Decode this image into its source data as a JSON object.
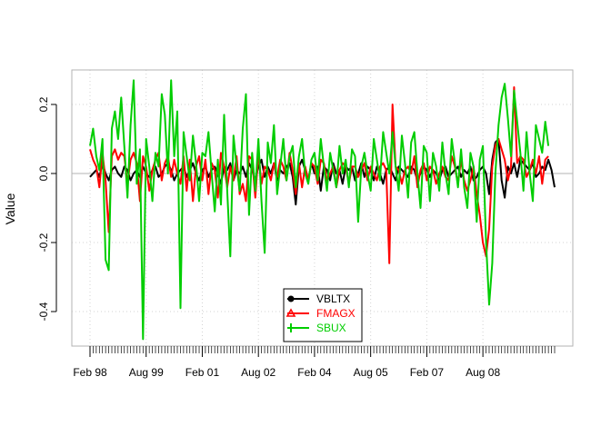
{
  "chart_data": {
    "type": "line",
    "ylabel": "Value",
    "xlabel": "",
    "ylim": [
      -0.5,
      0.3
    ],
    "y_ticks": [
      -0.4,
      -0.2,
      0.0,
      0.2
    ],
    "y_tick_labels": [
      "-0.4",
      "-0.2",
      "0.0",
      "0.2"
    ],
    "x_tick_labels": [
      "Feb 98",
      "Aug 99",
      "Feb 01",
      "Aug 02",
      "Feb 04",
      "Aug 05",
      "Feb 07",
      "Aug 08"
    ],
    "grid": true,
    "legend_position": "bottom-center",
    "series": [
      {
        "name": "VBLTX",
        "color": "#000000",
        "marker": "circle",
        "values": [
          -0.01,
          0.0,
          0.01,
          -0.01,
          0.03,
          0.0,
          -0.02,
          0.01,
          0.02,
          0.0,
          -0.01,
          0.02,
          0.01,
          -0.02,
          0.0,
          0.01,
          -0.01,
          0.02,
          0.0,
          -0.01,
          0.01,
          0.02,
          -0.01,
          0.0,
          0.02,
          0.03,
          0.01,
          -0.02,
          0.0,
          0.01,
          0.02,
          -0.01,
          0.01,
          0.03,
          0.0,
          -0.02,
          0.01,
          0.02,
          -0.01,
          0.01,
          0.02,
          0.0,
          -0.03,
          0.02,
          0.01,
          0.03,
          -0.02,
          0.01,
          0.0,
          0.02,
          -0.01,
          0.03,
          0.01,
          -0.02,
          0.02,
          0.04,
          -0.01,
          0.02,
          0.0,
          0.03,
          -0.02,
          0.01,
          0.0,
          0.02,
          0.03,
          -0.01,
          -0.09,
          0.02,
          0.04,
          0.01,
          -0.02,
          0.03,
          0.0,
          0.02,
          -0.05,
          0.02,
          0.01,
          -0.02,
          0.03,
          0.0,
          0.01,
          -0.03,
          0.02,
          0.01,
          0.02,
          -0.02,
          0.0,
          0.03,
          -0.01,
          0.02,
          0.01,
          -0.02,
          0.02,
          0.0,
          -0.03,
          0.01,
          0.02,
          0.0,
          -0.02,
          0.02,
          0.01,
          0.0,
          -0.01,
          0.02,
          0.01,
          -0.02,
          0.0,
          0.02,
          0.01,
          -0.01,
          0.01,
          0.0,
          -0.02,
          0.01,
          0.02,
          -0.01,
          0.0,
          0.01,
          0.02,
          -0.01,
          0.01,
          0.0,
          0.02,
          -0.02,
          -0.01,
          0.01,
          0.02,
          0.0,
          -0.06,
          0.04,
          0.09,
          0.1,
          -0.02,
          -0.07,
          0.02,
          0.0,
          0.03,
          -0.01,
          0.04,
          0.03,
          0.02,
          0.01,
          0.03,
          -0.01,
          0.0,
          0.02,
          0.01,
          0.04,
          0.01,
          -0.04
        ]
      },
      {
        "name": "FMAGX",
        "color": "#ff0000",
        "marker": "triangle",
        "values": [
          0.07,
          0.04,
          0.02,
          -0.04,
          0.06,
          -0.02,
          -0.17,
          0.05,
          0.07,
          0.04,
          0.06,
          0.05,
          -0.03,
          0.04,
          0.06,
          0.03,
          -0.08,
          0.05,
          0.02,
          -0.05,
          0.01,
          0.04,
          0.06,
          -0.02,
          0.03,
          0.05,
          -0.01,
          0.04,
          0.0,
          -0.03,
          0.05,
          -0.05,
          0.04,
          -0.08,
          0.02,
          0.05,
          -0.02,
          0.04,
          -0.06,
          0.03,
          0.01,
          -0.07,
          0.06,
          0.02,
          -0.04,
          0.02,
          -0.02,
          0.05,
          -0.06,
          -0.03,
          -0.08,
          0.05,
          0.04,
          -0.07,
          0.06,
          -0.03,
          0.02,
          0.01,
          -0.02,
          0.03,
          -0.01,
          0.04,
          0.02,
          -0.02,
          0.06,
          0.01,
          -0.06,
          0.03,
          -0.04,
          0.02,
          -0.02,
          0.03,
          0.02,
          -0.03,
          0.04,
          0.03,
          -0.02,
          0.0,
          0.02,
          -0.04,
          0.01,
          0.03,
          0.02,
          -0.03,
          0.02,
          0.02,
          -0.01,
          0.01,
          0.03,
          -0.02,
          0.02,
          0.0,
          -0.02,
          0.02,
          0.03,
          0.01,
          -0.26,
          0.2,
          0.02,
          0.01,
          -0.03,
          0.01,
          0.02,
          0.0,
          0.05,
          -0.04,
          0.01,
          0.03,
          -0.02,
          0.02,
          0.01,
          -0.03,
          0.0,
          0.02,
          -0.01,
          -0.02,
          0.05,
          0.02,
          -0.03,
          0.04,
          -0.02,
          -0.05,
          -0.02,
          0.02,
          -0.06,
          -0.12,
          -0.2,
          -0.24,
          -0.16,
          0.02,
          0.08,
          0.1,
          0.07,
          0.04,
          -0.02,
          0.02,
          0.25,
          0.03,
          0.05,
          0.04,
          -0.01,
          0.01,
          0.04,
          0.0,
          0.05,
          -0.03,
          0.04,
          0.05
        ]
      },
      {
        "name": "SBUX",
        "color": "#00cd00",
        "marker": "plus",
        "values": [
          0.08,
          0.13,
          0.05,
          0.01,
          0.1,
          -0.25,
          -0.28,
          0.13,
          0.18,
          0.1,
          0.22,
          0.08,
          -0.07,
          0.14,
          0.27,
          -0.03,
          0.07,
          -0.48,
          0.1,
          0.02,
          -0.08,
          0.06,
          0.02,
          0.23,
          0.17,
          0.0,
          0.27,
          0.05,
          0.18,
          -0.39,
          0.12,
          0.05,
          -0.02,
          0.11,
          0.03,
          -0.08,
          0.06,
          0.05,
          0.12,
          0.0,
          -0.11,
          0.04,
          -0.09,
          0.17,
          -0.05,
          -0.24,
          0.11,
          0.02,
          -0.05,
          0.13,
          0.23,
          -0.12,
          0.06,
          -0.05,
          0.1,
          -0.08,
          -0.23,
          0.09,
          0.03,
          0.14,
          -0.06,
          0.02,
          0.1,
          -0.02,
          0.05,
          0.08,
          -0.04,
          0.05,
          0.1,
          0.0,
          -0.03,
          0.04,
          0.06,
          -0.02,
          0.1,
          0.02,
          -0.05,
          0.06,
          0.01,
          -0.04,
          0.08,
          0.0,
          0.04,
          -0.04,
          0.07,
          0.05,
          -0.14,
          0.02,
          0.06,
          0.0,
          -0.05,
          0.1,
          0.04,
          -0.02,
          0.12,
          0.06,
          0.0,
          0.12,
          0.02,
          -0.05,
          0.11,
          0.03,
          -0.07,
          0.09,
          0.12,
          0.0,
          -0.1,
          0.08,
          0.06,
          -0.08,
          0.06,
          0.02,
          -0.05,
          0.09,
          0.0,
          -0.06,
          0.1,
          0.03,
          -0.04,
          0.07,
          -0.04,
          -0.1,
          0.06,
          0.02,
          -0.14,
          0.04,
          0.08,
          -0.2,
          -0.38,
          -0.26,
          0.0,
          0.14,
          0.22,
          0.26,
          0.16,
          0.05,
          0.24,
          0.15,
          0.06,
          -0.05,
          0.12,
          0.0,
          -0.08,
          0.14,
          0.1,
          0.06,
          0.15,
          0.08
        ]
      }
    ]
  }
}
